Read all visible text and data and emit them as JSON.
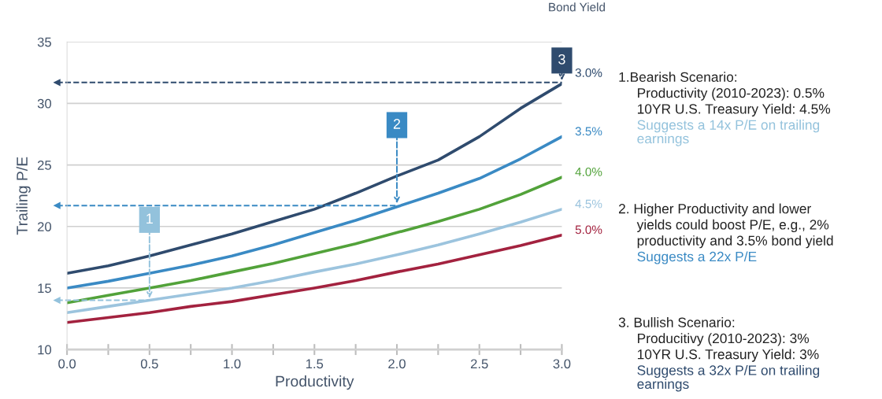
{
  "chart_data": {
    "type": "line",
    "xlabel": "Productivity",
    "ylabel": "Trailing P/E",
    "legend_title": "Bond Yield",
    "x": [
      0,
      0.25,
      0.5,
      0.75,
      1.0,
      1.25,
      1.5,
      1.75,
      2.0,
      2.25,
      2.5,
      2.75,
      3.0
    ],
    "series": [
      {
        "name": "3.0%",
        "color": "#2f4b6e",
        "values": [
          16.2,
          16.8,
          17.6,
          18.5,
          19.4,
          20.4,
          21.4,
          22.7,
          24.1,
          25.4,
          27.3,
          29.6,
          31.6
        ]
      },
      {
        "name": "3.5%",
        "color": "#3a8ac4",
        "values": [
          15.0,
          15.55,
          16.2,
          16.85,
          17.6,
          18.5,
          19.5,
          20.5,
          21.6,
          22.7,
          23.9,
          25.5,
          27.3
        ]
      },
      {
        "name": "4.0%",
        "color": "#52a23a",
        "values": [
          13.8,
          14.4,
          15.0,
          15.6,
          16.3,
          17.0,
          17.8,
          18.6,
          19.5,
          20.4,
          21.4,
          22.6,
          24.0
        ]
      },
      {
        "name": "4.5%",
        "color": "#9cc4de",
        "values": [
          13.0,
          13.5,
          14.0,
          14.5,
          15.0,
          15.6,
          16.3,
          16.95,
          17.7,
          18.5,
          19.4,
          20.35,
          21.4
        ]
      },
      {
        "name": "5.0%",
        "color": "#a3223f",
        "values": [
          12.2,
          12.6,
          13.0,
          13.5,
          13.9,
          14.45,
          15.0,
          15.6,
          16.3,
          16.95,
          17.7,
          18.45,
          19.3
        ]
      }
    ],
    "xlim": [
      0,
      3.0
    ],
    "ylim": [
      10,
      35
    ],
    "xticks": [
      {
        "value": 0,
        "label": "0.0"
      },
      {
        "value": 0.25,
        "label": null
      },
      0.5,
      {
        "value": 0.75,
        "label": null
      },
      {
        "value": 1.0,
        "label": "1.0"
      },
      {
        "value": 1.25,
        "label": null
      },
      1.5,
      {
        "value": 1.75,
        "label": null
      },
      {
        "value": 2.0,
        "label": "2.0"
      },
      {
        "value": 2.25,
        "label": null
      },
      2.5,
      {
        "value": 2.75,
        "label": null
      },
      {
        "value": 3.0,
        "label": "3.0"
      }
    ],
    "yticks": [
      10,
      15,
      20,
      25,
      30,
      35
    ],
    "grid": "y",
    "line_style": "solid",
    "ref_lines": [
      {
        "axis": "y",
        "value": 14.0,
        "color": "#93c2dc",
        "line_style": "dashed"
      },
      {
        "axis": "y",
        "value": 21.7,
        "color": "#3a8ac4",
        "line_style": "dashed"
      },
      {
        "axis": "y",
        "value": 31.7,
        "color": "#2f4b6e",
        "line_style": "dashed"
      }
    ],
    "annotations": [
      {
        "text": "1",
        "x": 0.5,
        "y": 14.0
      },
      {
        "text": "2",
        "x": 2.0,
        "y": 21.7
      },
      {
        "text": "3",
        "x": 3.0,
        "y": 31.7
      },
      "1.Bearish Scenario:\nProductivity (2010-2023): 0.5%\n10YR U.S. Treasury Yield: 4.5%",
      "Suggests a 14x P/E on trailing\nearnings",
      "2. Higher Productivity and lower\nyields could boost P/E, e.g., 2%\nproductivity and 3.5% bond yield",
      "Suggests a 22x P/E",
      "3. Bullish Scenario:\nProducitivy (2010-2023): 3%\n10YR U.S. Treasury Yield: 3%",
      "Suggests a 32x P/E on trailing\nearnings"
    ]
  }
}
